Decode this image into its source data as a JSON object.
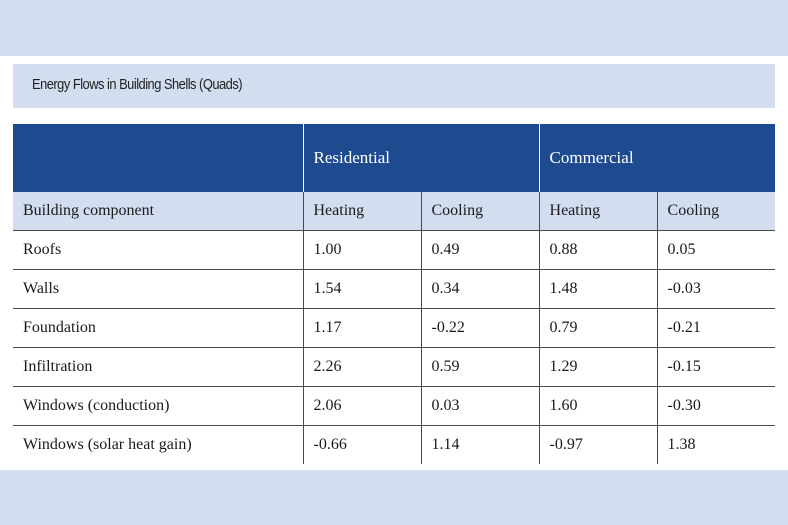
{
  "title": "Energy Flows in Building Shells (Quads)",
  "groups": [
    "Residential",
    "Commercial"
  ],
  "subheaders": [
    "Building component",
    "Heating",
    "Cooling",
    "Heating",
    "Cooling"
  ],
  "rows": [
    {
      "component": "Roofs",
      "res_heating": "1.00",
      "res_cooling": "0.49",
      "com_heating": "0.88",
      "com_cooling": "0.05"
    },
    {
      "component": "Walls",
      "res_heating": "1.54",
      "res_cooling": "0.34",
      "com_heating": "1.48",
      "com_cooling": "-0.03"
    },
    {
      "component": "Foundation",
      "res_heating": "1.17",
      "res_cooling": "-0.22",
      "com_heating": "0.79",
      "com_cooling": "-0.21"
    },
    {
      "component": "Infiltration",
      "res_heating": "2.26",
      "res_cooling": "0.59",
      "com_heating": "1.29",
      "com_cooling": "-0.15"
    },
    {
      "component": "Windows (conduction)",
      "res_heating": "2.06",
      "res_cooling": "0.03",
      "com_heating": "1.60",
      "com_cooling": "-0.30"
    },
    {
      "component": "Windows (solar heat gain)",
      "res_heating": "-0.66",
      "res_cooling": "1.14",
      "com_heating": "-0.97",
      "com_cooling": "1.38"
    }
  ],
  "colors": {
    "header_blue": "#1e4b8f",
    "light_band": "#d3ddf0"
  }
}
